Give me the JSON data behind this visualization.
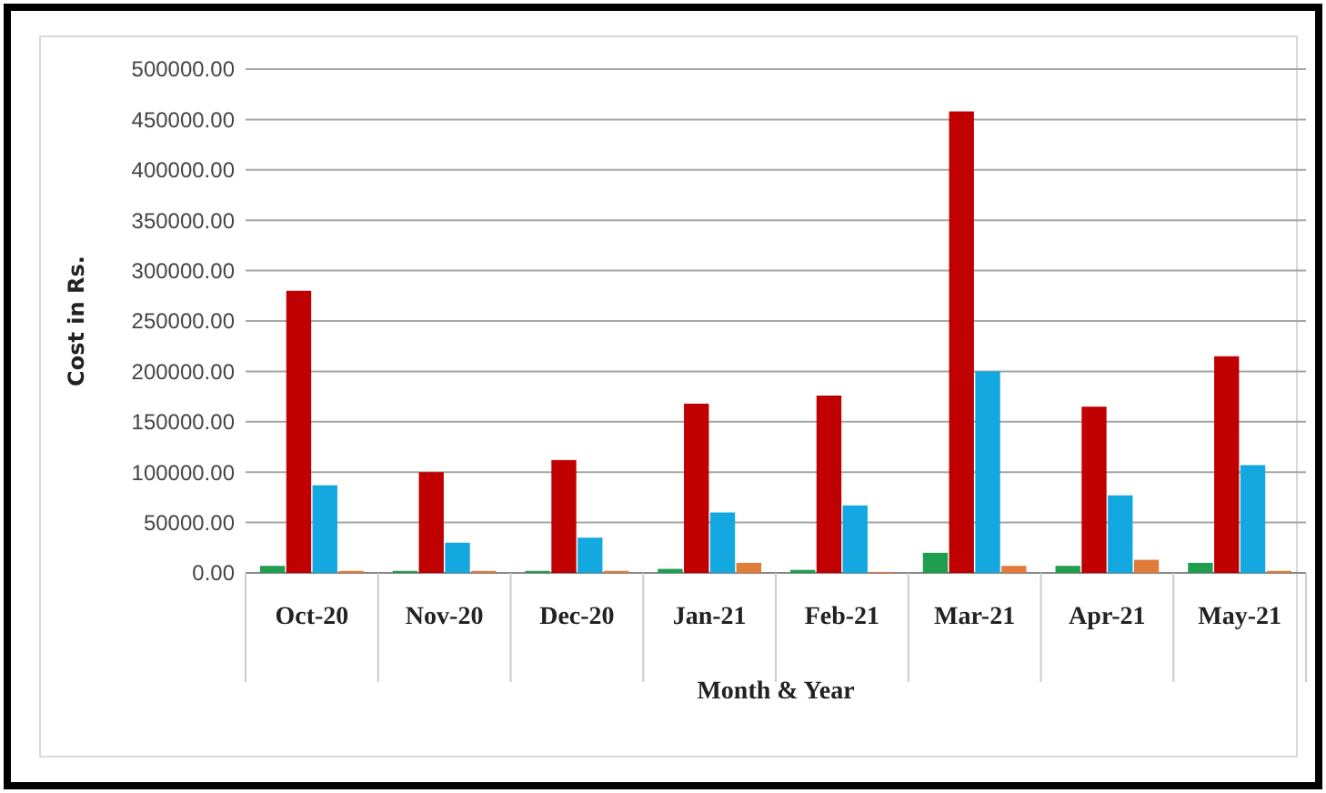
{
  "chart_data": {
    "type": "bar",
    "xlabel": "Month & Year",
    "ylabel": "Cost in Rs.",
    "categories": [
      "Oct-20",
      "Nov-20",
      "Dec-20",
      "Jan-21",
      "Feb-21",
      "Mar-21",
      "Apr-21",
      "May-21"
    ],
    "series": [
      {
        "color": "#1e9e4e",
        "values": [
          7000,
          2000,
          2000,
          4000,
          3000,
          20000,
          7000,
          10000
        ]
      },
      {
        "color": "#c00000",
        "values": [
          280000,
          100000,
          112000,
          168000,
          176000,
          458000,
          165000,
          215000
        ]
      },
      {
        "color": "#14a8e0",
        "values": [
          87000,
          30000,
          35000,
          60000,
          67000,
          200000,
          77000,
          107000
        ]
      },
      {
        "color": "#e07b39",
        "values": [
          2000,
          2000,
          2000,
          10000,
          1000,
          7000,
          13000,
          2000
        ]
      }
    ],
    "ylim": [
      0,
      500000
    ],
    "yticks": [
      {
        "value": 0,
        "label": "0.00"
      },
      {
        "value": 50000,
        "label": "50000.00"
      },
      {
        "value": 100000,
        "label": "100000.00"
      },
      {
        "value": 150000,
        "label": "150000.00"
      },
      {
        "value": 200000,
        "label": "200000.00"
      },
      {
        "value": 250000,
        "label": "250000.00"
      },
      {
        "value": 300000,
        "label": "300000.00"
      },
      {
        "value": 350000,
        "label": "350000.00"
      },
      {
        "value": 400000,
        "label": "400000.00"
      },
      {
        "value": 450000,
        "label": "450000.00"
      },
      {
        "value": 500000,
        "label": "500000.00"
      }
    ],
    "grid": "y"
  }
}
